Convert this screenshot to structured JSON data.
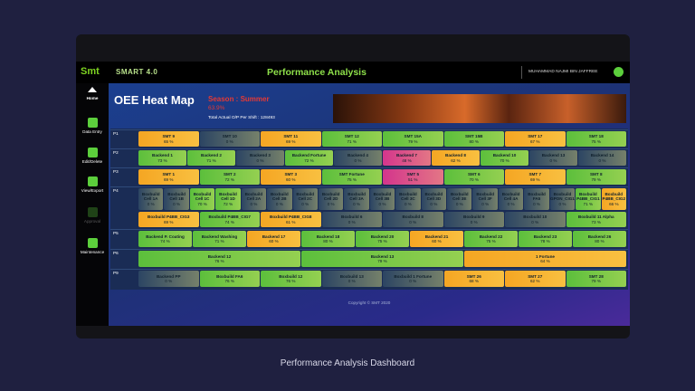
{
  "topbar": {
    "logo": "Smt",
    "app_name": "SMART 4.0",
    "title": "Performance Analysis",
    "user": "MUHAMMAD NAJMI BIN JAFFREE"
  },
  "sidebar": {
    "items": [
      "Home",
      "Data Entry",
      "Edit/Delete",
      "View/Export",
      "Approval",
      "Maintenance"
    ]
  },
  "header": {
    "title": "OEE Heat Map",
    "season": "Season : Summer",
    "oee": "63.9%",
    "total_output": "Total Actual O/P Per Shift : 128493"
  },
  "heat_map": {
    "rows": [
      {
        "label": "P1",
        "lines": [
          [
            {
              "name": "SMT 9",
              "value": "65 %",
              "color": "#f5a623"
            },
            {
              "name": "SMT 10",
              "value": "0 %",
              "color": "#2c4563"
            },
            {
              "name": "SMT 11",
              "value": "69 %",
              "color": "#f5a623"
            },
            {
              "name": "SMT 12",
              "value": "71 %",
              "color": "#5cbf3c"
            },
            {
              "name": "SMT 15A",
              "value": "79 %",
              "color": "#5cbf3c"
            },
            {
              "name": "SMT 15B",
              "value": "80 %",
              "color": "#5cbf3c"
            },
            {
              "name": "SMT 17",
              "value": "67 %",
              "color": "#f5a623"
            },
            {
              "name": "SMT 18",
              "value": "75 %",
              "color": "#5cbf3c"
            }
          ]
        ]
      },
      {
        "label": "P2",
        "lines": [
          [
            {
              "name": "Backend 1",
              "value": "73 %",
              "color": "#5cbf3c"
            },
            {
              "name": "Backend 2",
              "value": "71 %",
              "color": "#5cbf3c"
            },
            {
              "name": "Backend 3",
              "value": "0 %",
              "color": "#2c4563"
            },
            {
              "name": "Backend Fortune",
              "value": "72 %",
              "color": "#5cbf3c"
            },
            {
              "name": "Backend 4",
              "value": "0 %",
              "color": "#2c4563"
            },
            {
              "name": "Backend 7",
              "value": "48 %",
              "color": "#d4358c"
            },
            {
              "name": "Backend 8",
              "value": "62 %",
              "color": "#f5a623"
            },
            {
              "name": "Backend 10",
              "value": "70 %",
              "color": "#5cbf3c"
            },
            {
              "name": "Backend 13",
              "value": "0 %",
              "color": "#2c4563"
            },
            {
              "name": "Backend 14",
              "value": "0 %",
              "color": "#2c4563"
            }
          ]
        ]
      },
      {
        "label": "P3",
        "lines": [
          [
            {
              "name": "SMT 1",
              "value": "69 %",
              "color": "#f5a623"
            },
            {
              "name": "SMT 2",
              "value": "72 %",
              "color": "#5cbf3c"
            },
            {
              "name": "SMT 3",
              "value": "60 %",
              "color": "#f5a623"
            },
            {
              "name": "SMT Fortune",
              "value": "75 %",
              "color": "#5cbf3c"
            },
            {
              "name": "SMT 5",
              "value": "51 %",
              "color": "#d4358c"
            },
            {
              "name": "SMT 6",
              "value": "70 %",
              "color": "#5cbf3c"
            },
            {
              "name": "SMT 7",
              "value": "69 %",
              "color": "#f5a623"
            },
            {
              "name": "SMT 8",
              "value": "79 %",
              "color": "#5cbf3c"
            }
          ]
        ]
      },
      {
        "label": "P4",
        "lines": [
          [
            {
              "name": "Boxbuild Cell 1A",
              "value": "0 %",
              "color": "#2c4563"
            },
            {
              "name": "Boxbuild Cell 1B",
              "value": "0 %",
              "color": "#2c4563"
            },
            {
              "name": "Boxbuild Cell 1C",
              "value": "70 %",
              "color": "#5cbf3c"
            },
            {
              "name": "Boxbuild Cell 1D",
              "value": "72 %",
              "color": "#5cbf3c"
            },
            {
              "name": "Boxbuild Cell 2A",
              "value": "0 %",
              "color": "#2c4563"
            },
            {
              "name": "Boxbuild Cell 2B",
              "value": "0 %",
              "color": "#2c4563"
            },
            {
              "name": "Boxbuild Cell 2C",
              "value": "0 %",
              "color": "#2c4563"
            },
            {
              "name": "Boxbuild Cell 2D",
              "value": "0 %",
              "color": "#2c4563"
            },
            {
              "name": "Boxbuild Cell 3A",
              "value": "0 %",
              "color": "#2c4563"
            },
            {
              "name": "Boxbuild Cell 3B",
              "value": "0 %",
              "color": "#2c4563"
            },
            {
              "name": "Boxbuild Cell 3C",
              "value": "0 %",
              "color": "#2c4563"
            },
            {
              "name": "Boxbuild Cell 3D",
              "value": "0 %",
              "color": "#2c4563"
            },
            {
              "name": "Boxbuild Cell 3E",
              "value": "0 %",
              "color": "#2c4563"
            },
            {
              "name": "Boxbuild Cell 3F",
              "value": "0 %",
              "color": "#2c4563"
            },
            {
              "name": "Boxbuild Cell 4A",
              "value": "0 %",
              "color": "#2c4563"
            },
            {
              "name": "Boxbuild FA5",
              "value": "0 %",
              "color": "#2c4563"
            },
            {
              "name": "Boxbuild GPON_CIG1",
              "value": "0 %",
              "color": "#2c4563"
            },
            {
              "name": "Boxbuild P4BB_CIG1",
              "value": "71 %",
              "color": "#5cbf3c"
            },
            {
              "name": "Boxbuild P4BB_CIG2",
              "value": "66 %",
              "color": "#f5a623"
            }
          ],
          [
            {
              "name": "Boxbuild P4BB_CIG3",
              "value": "69 %",
              "color": "#f5a623"
            },
            {
              "name": "Boxbuild P4BB_CIG7",
              "value": "74 %",
              "color": "#5cbf3c"
            },
            {
              "name": "Boxbuild P4BB_CIG8",
              "value": "61 %",
              "color": "#f5a623"
            },
            {
              "name": "Boxbuild 6",
              "value": "0 %",
              "color": "#2c4563"
            },
            {
              "name": "Boxbuild 8",
              "value": "0 %",
              "color": "#2c4563"
            },
            {
              "name": "Boxbuild 9",
              "value": "0 %",
              "color": "#2c4563"
            },
            {
              "name": "Boxbuild 10",
              "value": "0 %",
              "color": "#2c4563"
            },
            {
              "name": "Boxbuild 11 Alpha",
              "value": "73 %",
              "color": "#5cbf3c"
            }
          ]
        ]
      },
      {
        "label": "P5",
        "lines": [
          [
            {
              "name": "Backend P. Coating",
              "value": "74 %",
              "color": "#5cbf3c"
            },
            {
              "name": "Backend Washing",
              "value": "71 %",
              "color": "#5cbf3c"
            },
            {
              "name": "Backend 17",
              "value": "60 %",
              "color": "#f5a623"
            },
            {
              "name": "Backend 18",
              "value": "80 %",
              "color": "#5cbf3c"
            },
            {
              "name": "Backend 20",
              "value": "75 %",
              "color": "#5cbf3c"
            },
            {
              "name": "Backend 21",
              "value": "60 %",
              "color": "#f5a623"
            },
            {
              "name": "Backend 22",
              "value": "75 %",
              "color": "#5cbf3c"
            },
            {
              "name": "Backend 23",
              "value": "78 %",
              "color": "#5cbf3c"
            },
            {
              "name": "Backend 26",
              "value": "80 %",
              "color": "#5cbf3c"
            }
          ]
        ]
      },
      {
        "label": "P6",
        "lines": [
          [
            {
              "name": "Backend 12",
              "value": "76 %",
              "color": "#5cbf3c"
            },
            {
              "name": "Backend 13",
              "value": "79 %",
              "color": "#5cbf3c"
            },
            {
              "name": "1 Fortune",
              "value": "64 %",
              "color": "#f5a623"
            }
          ]
        ]
      },
      {
        "label": "P9",
        "lines": [
          [
            {
              "name": "Backend PP",
              "value": "0 %",
              "color": "#2c4563"
            },
            {
              "name": "Boxbuild FA6",
              "value": "76 %",
              "color": "#5cbf3c"
            },
            {
              "name": "Boxbuild 12",
              "value": "76 %",
              "color": "#5cbf3c"
            },
            {
              "name": "Boxbuild 13",
              "value": "0 %",
              "color": "#2c4563"
            },
            {
              "name": "Boxbuild 1 Fortune",
              "value": "0 %",
              "color": "#2c4563"
            },
            {
              "name": "SMT 26",
              "value": "68 %",
              "color": "#f5a623"
            },
            {
              "name": "SMT 27",
              "value": "62 %",
              "color": "#f5a623"
            },
            {
              "name": "SMT 28",
              "value": "79 %",
              "color": "#5cbf3c"
            }
          ]
        ]
      }
    ]
  },
  "footer": "Copyright © SMT 2020",
  "caption": "Performance Analysis Dashboard"
}
